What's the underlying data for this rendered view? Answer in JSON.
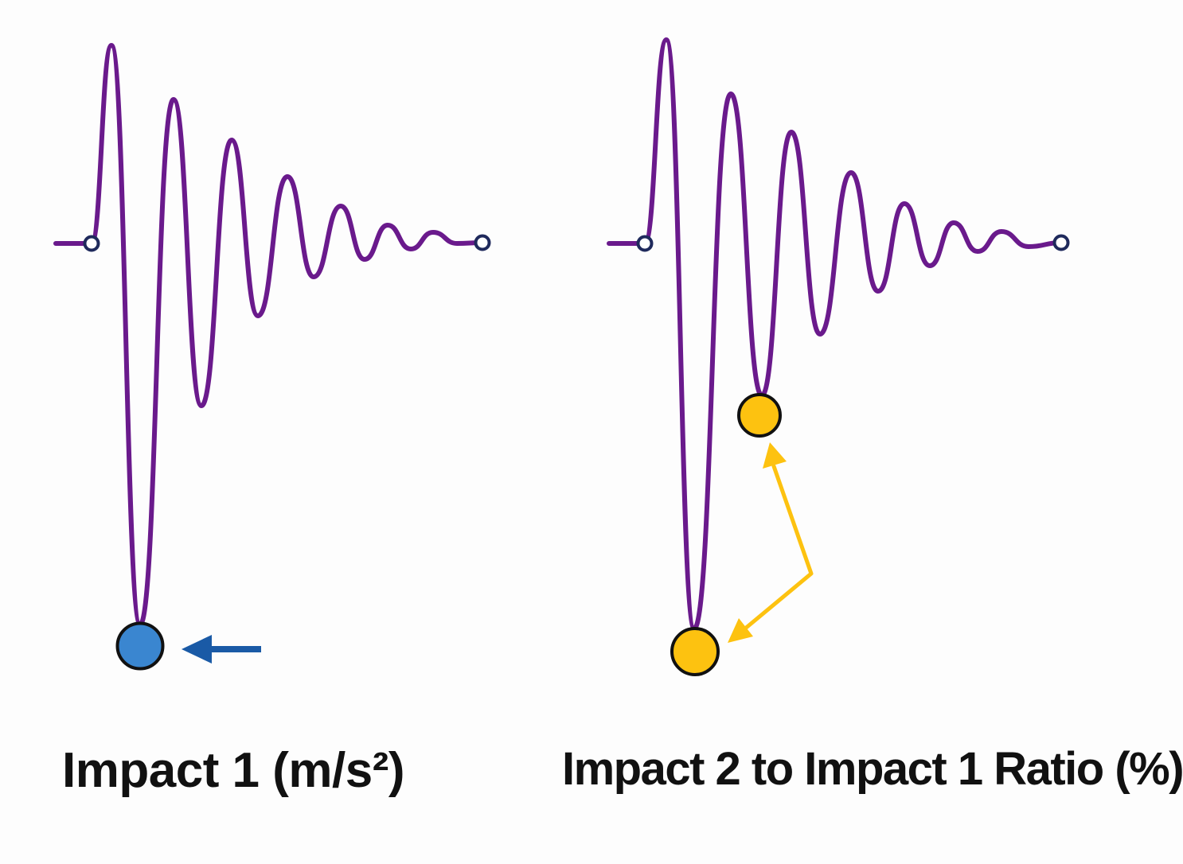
{
  "panels": [
    {
      "caption": "Impact 1 (m/s²)",
      "marker": "impact-1-peak-marker",
      "indicator": "left-pointing-arrow"
    },
    {
      "caption": "Impact 2 to Impact 1 Ratio (%)",
      "markers": [
        "impact-1-peak-marker",
        "impact-2-peak-marker"
      ],
      "indicator": "double-headed-arrow"
    }
  ],
  "colors": {
    "waveform": "#6a1a8c",
    "endpoint_stroke": "#1f2a5c",
    "impact1_marker_fill": "#3a86d0",
    "impact1_arrow": "#1a5aa6",
    "ratio_marker_fill": "#fdc210",
    "ratio_arrow": "#fdc210",
    "marker_outline": "#111111",
    "caption_text": "#111111"
  }
}
